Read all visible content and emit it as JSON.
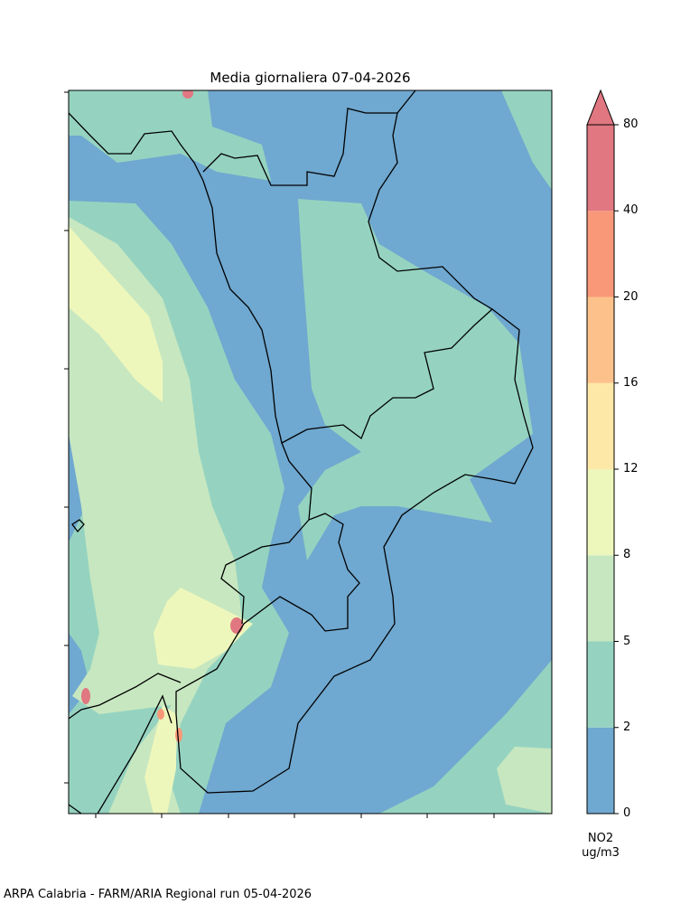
{
  "title": "Media giornaliera 07-04-2026",
  "footer": "ARPA Calabria - FARM/ARIA Regional run 05-04-2026",
  "colorbar": {
    "variable": "NO2",
    "unit": "ug/m3",
    "ticks": [
      "0",
      "2",
      "5",
      "8",
      "12",
      "16",
      "20",
      "40",
      "80"
    ],
    "colors": [
      "#6fa8d0",
      "#95d3c0",
      "#c7e7c0",
      "#eef7bb",
      "#fee8a8",
      "#fdc28b",
      "#f89878",
      "#e07781"
    ],
    "extend": "max"
  }
}
